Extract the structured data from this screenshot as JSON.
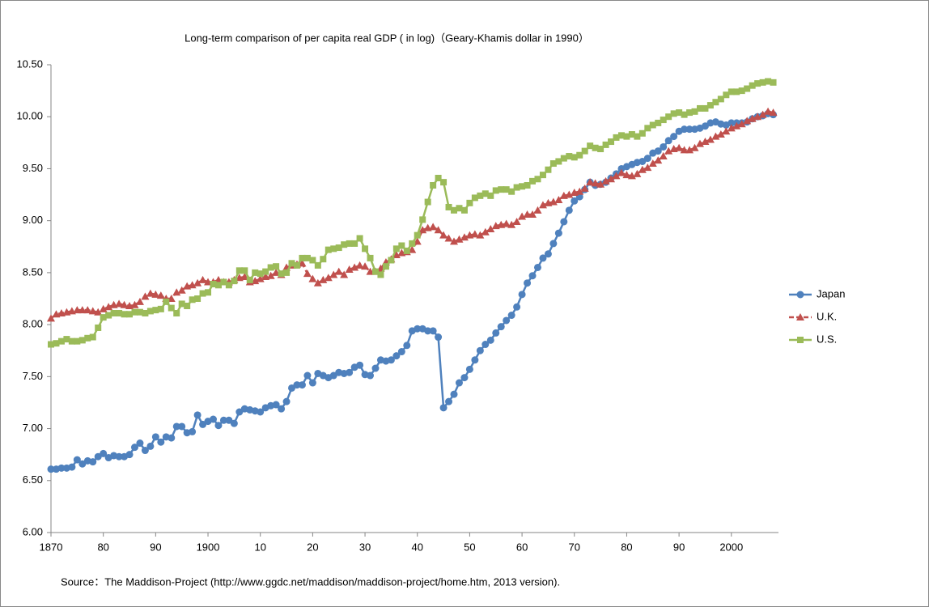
{
  "chart_data": {
    "type": "line",
    "title": "Long-term comparison of per capita real GDP ( in log)（Geary-Khamis dollar  in 1990）",
    "source": "Source：The Maddison-Project (http://www.ggdc.net/maddison/maddison-project/home.htm, 2013 version).",
    "x": [
      1870,
      1871,
      1872,
      1873,
      1874,
      1875,
      1876,
      1877,
      1878,
      1879,
      1880,
      1881,
      1882,
      1883,
      1884,
      1885,
      1886,
      1887,
      1888,
      1889,
      1890,
      1891,
      1892,
      1893,
      1894,
      1895,
      1896,
      1897,
      1898,
      1899,
      1900,
      1901,
      1902,
      1903,
      1904,
      1905,
      1906,
      1907,
      1908,
      1909,
      1910,
      1911,
      1912,
      1913,
      1914,
      1915,
      1916,
      1917,
      1918,
      1919,
      1920,
      1921,
      1922,
      1923,
      1924,
      1925,
      1926,
      1927,
      1928,
      1929,
      1930,
      1931,
      1932,
      1933,
      1934,
      1935,
      1936,
      1937,
      1938,
      1939,
      1940,
      1941,
      1942,
      1943,
      1944,
      1945,
      1946,
      1947,
      1948,
      1949,
      1950,
      1951,
      1952,
      1953,
      1954,
      1955,
      1956,
      1957,
      1958,
      1959,
      1960,
      1961,
      1962,
      1963,
      1964,
      1965,
      1966,
      1967,
      1968,
      1969,
      1970,
      1971,
      1972,
      1973,
      1974,
      1975,
      1976,
      1977,
      1978,
      1979,
      1980,
      1981,
      1982,
      1983,
      1984,
      1985,
      1986,
      1987,
      1988,
      1989,
      1990,
      1991,
      1992,
      1993,
      1994,
      1995,
      1996,
      1997,
      1998,
      1999,
      2000,
      2001,
      2002,
      2003,
      2004,
      2005,
      2006,
      2007,
      2008
    ],
    "series": [
      {
        "name": "Japan",
        "color": "#4f81bd",
        "marker": "circle",
        "dashed": false,
        "values": [
          6.61,
          6.61,
          6.62,
          6.62,
          6.63,
          6.7,
          6.66,
          6.69,
          6.68,
          6.73,
          6.76,
          6.72,
          6.74,
          6.73,
          6.73,
          6.75,
          6.82,
          6.86,
          6.79,
          6.83,
          6.92,
          6.87,
          6.92,
          6.91,
          7.02,
          7.02,
          6.96,
          6.97,
          7.13,
          7.04,
          7.07,
          7.09,
          7.03,
          7.08,
          7.08,
          7.05,
          7.16,
          7.19,
          7.18,
          7.17,
          7.16,
          7.2,
          7.22,
          7.23,
          7.19,
          7.26,
          7.39,
          7.42,
          7.42,
          7.51,
          7.44,
          7.53,
          7.51,
          7.49,
          7.51,
          7.54,
          7.53,
          7.54,
          7.59,
          7.61,
          7.52,
          7.51,
          7.58,
          7.66,
          7.65,
          7.66,
          7.7,
          7.74,
          7.8,
          7.94,
          7.96,
          7.96,
          7.94,
          7.94,
          7.88,
          7.2,
          7.26,
          7.33,
          7.44,
          7.49,
          7.57,
          7.66,
          7.75,
          7.81,
          7.85,
          7.92,
          7.98,
          8.04,
          8.09,
          8.17,
          8.29,
          8.4,
          8.47,
          8.55,
          8.64,
          8.68,
          8.78,
          8.88,
          8.99,
          9.1,
          9.19,
          9.23,
          9.3,
          9.37,
          9.34,
          9.35,
          9.37,
          9.41,
          9.45,
          9.5,
          9.52,
          9.54,
          9.56,
          9.57,
          9.6,
          9.65,
          9.67,
          9.71,
          9.77,
          9.81,
          9.86,
          9.88,
          9.88,
          9.88,
          9.89,
          9.91,
          9.94,
          9.95,
          9.93,
          9.92,
          9.94,
          9.94,
          9.94,
          9.95,
          9.98,
          10.0,
          10.01,
          10.03,
          10.02
        ]
      },
      {
        "name": "U.K.",
        "color": "#c0504d",
        "marker": "triangle",
        "dashed": true,
        "values": [
          8.06,
          8.1,
          8.11,
          8.12,
          8.13,
          8.14,
          8.14,
          8.14,
          8.13,
          8.12,
          8.15,
          8.17,
          8.19,
          8.2,
          8.19,
          8.18,
          8.19,
          8.22,
          8.27,
          8.3,
          8.29,
          8.28,
          8.25,
          8.25,
          8.31,
          8.33,
          8.37,
          8.38,
          8.4,
          8.43,
          8.41,
          8.41,
          8.43,
          8.41,
          8.41,
          8.43,
          8.45,
          8.46,
          8.41,
          8.42,
          8.44,
          8.46,
          8.47,
          8.5,
          8.48,
          8.55,
          8.57,
          8.58,
          8.59,
          8.49,
          8.44,
          8.4,
          8.43,
          8.45,
          8.48,
          8.51,
          8.48,
          8.53,
          8.55,
          8.57,
          8.56,
          8.51,
          8.51,
          8.54,
          8.6,
          8.63,
          8.67,
          8.69,
          8.7,
          8.72,
          8.8,
          8.91,
          8.93,
          8.94,
          8.91,
          8.86,
          8.83,
          8.8,
          8.82,
          8.84,
          8.86,
          8.87,
          8.86,
          8.89,
          8.92,
          8.95,
          8.96,
          8.97,
          8.96,
          8.99,
          9.04,
          9.06,
          9.06,
          9.1,
          9.15,
          9.17,
          9.18,
          9.2,
          9.24,
          9.25,
          9.27,
          9.28,
          9.31,
          9.37,
          9.36,
          9.35,
          9.38,
          9.4,
          9.43,
          9.46,
          9.44,
          9.43,
          9.45,
          9.49,
          9.51,
          9.55,
          9.58,
          9.62,
          9.67,
          9.69,
          9.7,
          9.68,
          9.68,
          9.7,
          9.74,
          9.76,
          9.78,
          9.81,
          9.83,
          9.86,
          9.89,
          9.91,
          9.93,
          9.96,
          9.98,
          10.0,
          10.02,
          10.05,
          10.04
        ]
      },
      {
        "name": "U.S.",
        "color": "#9bbb59",
        "marker": "square",
        "dashed": false,
        "values": [
          7.81,
          7.82,
          7.84,
          7.86,
          7.84,
          7.84,
          7.85,
          7.87,
          7.88,
          7.97,
          8.07,
          8.09,
          8.11,
          8.11,
          8.1,
          8.1,
          8.12,
          8.12,
          8.11,
          8.13,
          8.14,
          8.15,
          8.22,
          8.16,
          8.11,
          8.2,
          8.18,
          8.24,
          8.25,
          8.3,
          8.31,
          8.39,
          8.38,
          8.41,
          8.38,
          8.42,
          8.52,
          8.52,
          8.43,
          8.5,
          8.49,
          8.51,
          8.55,
          8.56,
          8.49,
          8.5,
          8.59,
          8.57,
          8.64,
          8.64,
          8.62,
          8.57,
          8.63,
          8.72,
          8.73,
          8.74,
          8.77,
          8.78,
          8.78,
          8.83,
          8.73,
          8.64,
          8.51,
          8.48,
          8.56,
          8.62,
          8.73,
          8.76,
          8.71,
          8.78,
          8.86,
          9.01,
          9.18,
          9.34,
          9.41,
          9.37,
          9.13,
          9.1,
          9.12,
          9.1,
          9.17,
          9.22,
          9.24,
          9.26,
          9.24,
          9.29,
          9.3,
          9.3,
          9.28,
          9.32,
          9.33,
          9.34,
          9.38,
          9.4,
          9.44,
          9.49,
          9.55,
          9.57,
          9.6,
          9.62,
          9.61,
          9.63,
          9.67,
          9.72,
          9.7,
          9.69,
          9.73,
          9.76,
          9.8,
          9.82,
          9.81,
          9.83,
          9.81,
          9.84,
          9.89,
          9.92,
          9.94,
          9.97,
          10.0,
          10.03,
          10.04,
          10.02,
          10.04,
          10.05,
          10.08,
          10.08,
          10.11,
          10.14,
          10.17,
          10.21,
          10.24,
          10.24,
          10.25,
          10.27,
          10.3,
          10.32,
          10.33,
          10.34,
          10.33
        ]
      }
    ],
    "xlim": [
      1870,
      2009
    ],
    "xticks": [
      1870,
      {
        "value": 1880,
        "label": "80"
      },
      {
        "value": 1890,
        "label": "90"
      },
      1900,
      {
        "value": 1910,
        "label": "10"
      },
      {
        "value": 1920,
        "label": "20"
      },
      {
        "value": 1930,
        "label": "30"
      },
      {
        "value": 1940,
        "label": "40"
      },
      {
        "value": 1950,
        "label": "50"
      },
      {
        "value": 1960,
        "label": "60"
      },
      {
        "value": 1970,
        "label": "70"
      },
      {
        "value": 1980,
        "label": "80"
      },
      {
        "value": 1990,
        "label": "90"
      },
      2000
    ],
    "ylim": [
      6,
      10.5
    ],
    "yticks": [
      {
        "value": 6,
        "label": "6.00"
      },
      {
        "value": 6.5,
        "label": "6.50"
      },
      {
        "value": 7,
        "label": "7.00"
      },
      {
        "value": 7.5,
        "label": "7.50"
      },
      {
        "value": 8,
        "label": "8.00"
      },
      {
        "value": 8.5,
        "label": "8.50"
      },
      {
        "value": 9,
        "label": "9.00"
      },
      {
        "value": 9.5,
        "label": "9.50"
      },
      {
        "value": 10,
        "label": "10.00"
      },
      {
        "value": 10.5,
        "label": "10.50"
      }
    ],
    "grid": false,
    "legend": "right"
  }
}
